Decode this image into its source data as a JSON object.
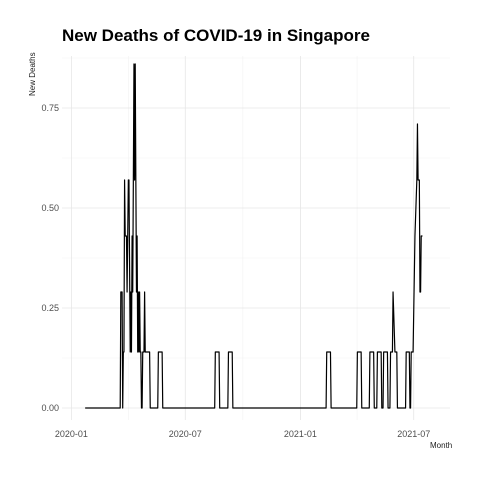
{
  "chart_data": {
    "type": "line",
    "title": "New Deaths of COVID-19 in Singapore",
    "xlabel": "Month",
    "ylabel": "New Deaths",
    "xlim": [
      "2019-12-17",
      "2021-08-28"
    ],
    "ylim": [
      -0.03,
      0.88
    ],
    "x_ticks": [
      {
        "date": "2020-01-01",
        "label": "2020-01"
      },
      {
        "date": "2020-07-01",
        "label": "2020-07"
      },
      {
        "date": "2021-01-01",
        "label": "2021-01"
      },
      {
        "date": "2021-07-01",
        "label": "2021-07"
      }
    ],
    "y_ticks": [
      {
        "value": 0,
        "label": "0.00"
      },
      {
        "value": 0.25,
        "label": "0.25"
      },
      {
        "value": 0.5,
        "label": "0.50"
      },
      {
        "value": 0.75,
        "label": "0.75"
      }
    ],
    "grid": true,
    "series": [
      {
        "color": "#000000",
        "points": [
          [
            "2020-01-23",
            0
          ],
          [
            "2020-03-19",
            0
          ],
          [
            "2020-03-20",
            0.29
          ],
          [
            "2020-03-22",
            0.29
          ],
          [
            "2020-03-23",
            0
          ],
          [
            "2020-03-24",
            0.14
          ],
          [
            "2020-03-25",
            0.14
          ],
          [
            "2020-03-26",
            0.57
          ],
          [
            "2020-03-27",
            0.43
          ],
          [
            "2020-03-29",
            0.43
          ],
          [
            "2020-03-30",
            0.29
          ],
          [
            "2020-04-01",
            0.57
          ],
          [
            "2020-04-02",
            0.57
          ],
          [
            "2020-04-04",
            0.14
          ],
          [
            "2020-04-05",
            0.29
          ],
          [
            "2020-04-06",
            0.14
          ],
          [
            "2020-04-07",
            0.43
          ],
          [
            "2020-04-08",
            0.29
          ],
          [
            "2020-04-09",
            0.57
          ],
          [
            "2020-04-10",
            0.86
          ],
          [
            "2020-04-11",
            0.57
          ],
          [
            "2020-04-12",
            0.86
          ],
          [
            "2020-04-13",
            0.57
          ],
          [
            "2020-04-14",
            0.29
          ],
          [
            "2020-04-15",
            0.43
          ],
          [
            "2020-04-16",
            0.14
          ],
          [
            "2020-04-17",
            0.29
          ],
          [
            "2020-04-18",
            0.14
          ],
          [
            "2020-04-19",
            0.29
          ],
          [
            "2020-04-20",
            0.14
          ],
          [
            "2020-04-21",
            0.14
          ],
          [
            "2020-04-22",
            0
          ],
          [
            "2020-04-23",
            0
          ],
          [
            "2020-04-24",
            0.14
          ],
          [
            "2020-04-26",
            0.14
          ],
          [
            "2020-04-27",
            0.29
          ],
          [
            "2020-04-28",
            0.14
          ],
          [
            "2020-05-05",
            0.14
          ],
          [
            "2020-05-06",
            0
          ],
          [
            "2020-05-18",
            0
          ],
          [
            "2020-05-19",
            0.14
          ],
          [
            "2020-05-25",
            0.14
          ],
          [
            "2020-05-26",
            0
          ],
          [
            "2020-08-17",
            0
          ],
          [
            "2020-08-18",
            0.14
          ],
          [
            "2020-08-24",
            0.14
          ],
          [
            "2020-08-25",
            0
          ],
          [
            "2020-09-07",
            0
          ],
          [
            "2020-09-08",
            0.14
          ],
          [
            "2020-09-14",
            0.14
          ],
          [
            "2020-09-15",
            0
          ],
          [
            "2021-02-11",
            0
          ],
          [
            "2021-02-12",
            0.14
          ],
          [
            "2021-02-18",
            0.14
          ],
          [
            "2021-02-19",
            0
          ],
          [
            "2021-04-01",
            0
          ],
          [
            "2021-04-02",
            0.14
          ],
          [
            "2021-04-08",
            0.14
          ],
          [
            "2021-04-09",
            0
          ],
          [
            "2021-04-21",
            0
          ],
          [
            "2021-04-22",
            0.14
          ],
          [
            "2021-04-28",
            0.14
          ],
          [
            "2021-04-29",
            0
          ],
          [
            "2021-05-03",
            0
          ],
          [
            "2021-05-04",
            0.14
          ],
          [
            "2021-05-10",
            0.14
          ],
          [
            "2021-05-11",
            0
          ],
          [
            "2021-05-13",
            0
          ],
          [
            "2021-05-14",
            0.14
          ],
          [
            "2021-05-20",
            0.14
          ],
          [
            "2021-05-21",
            0
          ],
          [
            "2021-05-24",
            0
          ],
          [
            "2021-05-25",
            0.14
          ],
          [
            "2021-05-28",
            0.14
          ],
          [
            "2021-05-29",
            0.29
          ],
          [
            "2021-06-01",
            0.14
          ],
          [
            "2021-06-04",
            0.14
          ],
          [
            "2021-06-05",
            0
          ],
          [
            "2021-06-18",
            0
          ],
          [
            "2021-06-19",
            0.14
          ],
          [
            "2021-06-24",
            0.14
          ],
          [
            "2021-06-25",
            0
          ],
          [
            "2021-06-26",
            0
          ],
          [
            "2021-06-27",
            0.14
          ],
          [
            "2021-06-30",
            0.14
          ],
          [
            "2021-07-03",
            0.43
          ],
          [
            "2021-07-06",
            0.57
          ],
          [
            "2021-07-07",
            0.71
          ],
          [
            "2021-07-08",
            0.57
          ],
          [
            "2021-07-10",
            0.57
          ],
          [
            "2021-07-11",
            0.29
          ],
          [
            "2021-07-12",
            0.29
          ],
          [
            "2021-07-13",
            0.43
          ],
          [
            "2021-07-15",
            0.43
          ]
        ]
      }
    ]
  }
}
